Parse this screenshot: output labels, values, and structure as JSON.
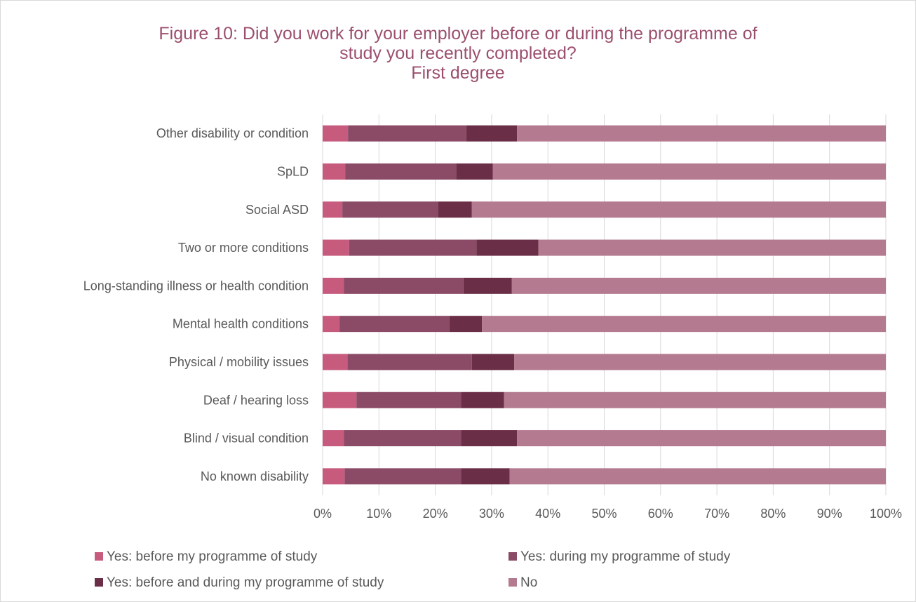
{
  "chart_data": {
    "type": "bar",
    "orientation": "horizontal",
    "stacked": true,
    "title": "Figure 10: Did you work for your employer before or during the programme of study you recently completed?",
    "subtitle": "First degree",
    "categories": [
      "Other disability or condition",
      "SpLD",
      "Social ASD",
      "Two or more conditions",
      "Long-standing illness or health condition",
      "Mental health conditions",
      "Physical / mobility issues",
      "Deaf / hearing loss",
      "Blind / visual condition",
      "No known disability"
    ],
    "series": [
      {
        "name": "Yes: before my programme of study",
        "color": "#c75b7e",
        "values": [
          4.5,
          4.0,
          3.5,
          4.7,
          3.8,
          3.0,
          4.4,
          6.0,
          3.8,
          3.9
        ]
      },
      {
        "name": "Yes: during my programme of study",
        "color": "#8b4a66",
        "values": [
          21.0,
          19.7,
          17.0,
          22.6,
          21.2,
          19.5,
          22.1,
          18.6,
          20.8,
          20.7
        ]
      },
      {
        "name": "Yes: before and during my programme of study",
        "color": "#6b2e47",
        "values": [
          9.0,
          6.5,
          6.0,
          11.0,
          8.6,
          5.8,
          7.5,
          7.6,
          9.9,
          8.6
        ]
      },
      {
        "name": "No",
        "color": "#b47a90",
        "values": [
          65.5,
          69.8,
          73.5,
          61.7,
          66.4,
          71.7,
          66.0,
          67.8,
          65.5,
          66.8
        ]
      }
    ],
    "xlim": [
      0,
      100
    ],
    "xticks": [
      "0%",
      "10%",
      "20%",
      "30%",
      "40%",
      "50%",
      "60%",
      "70%",
      "80%",
      "90%",
      "100%"
    ],
    "grid": true,
    "legend_position": "bottom"
  }
}
